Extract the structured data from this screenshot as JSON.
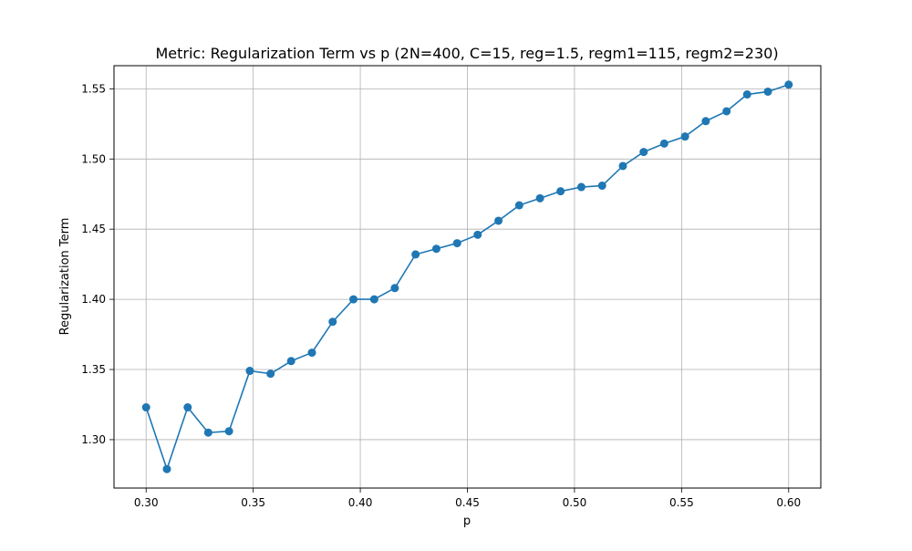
{
  "chart_data": {
    "type": "line",
    "title": "Metric: Regularization Term vs p (2N=400, C=15, reg=1.5, regm1=115, regm2=230)",
    "xlabel": "p",
    "ylabel": "Regularization Term",
    "xlim": [
      0.285,
      0.615
    ],
    "ylim": [
      1.2655,
      1.5665
    ],
    "xticks": [
      0.3,
      0.35,
      0.4,
      0.45,
      0.5,
      0.55,
      0.6
    ],
    "xtick_labels": [
      "0.30",
      "0.35",
      "0.40",
      "0.45",
      "0.50",
      "0.55",
      "0.60"
    ],
    "yticks": [
      1.3,
      1.35,
      1.4,
      1.45,
      1.5,
      1.55
    ],
    "ytick_labels": [
      "1.30",
      "1.35",
      "1.40",
      "1.45",
      "1.50",
      "1.55"
    ],
    "grid": true,
    "line_color": "#1f77b4",
    "marker": "circle",
    "x": [
      0.3,
      0.3097,
      0.3194,
      0.329,
      0.3387,
      0.3484,
      0.3581,
      0.3677,
      0.3774,
      0.3871,
      0.3968,
      0.4065,
      0.4161,
      0.4258,
      0.4355,
      0.4452,
      0.4548,
      0.4645,
      0.4742,
      0.4839,
      0.4935,
      0.5032,
      0.5129,
      0.5226,
      0.5323,
      0.5419,
      0.5516,
      0.5613,
      0.571,
      0.5806,
      0.5903,
      0.6
    ],
    "y": [
      1.323,
      1.279,
      1.323,
      1.305,
      1.306,
      1.349,
      1.347,
      1.356,
      1.362,
      1.384,
      1.4,
      1.4,
      1.408,
      1.432,
      1.436,
      1.44,
      1.446,
      1.456,
      1.467,
      1.472,
      1.477,
      1.48,
      1.481,
      1.495,
      1.505,
      1.511,
      1.516,
      1.527,
      1.534,
      1.546,
      1.548,
      1.553
    ]
  }
}
